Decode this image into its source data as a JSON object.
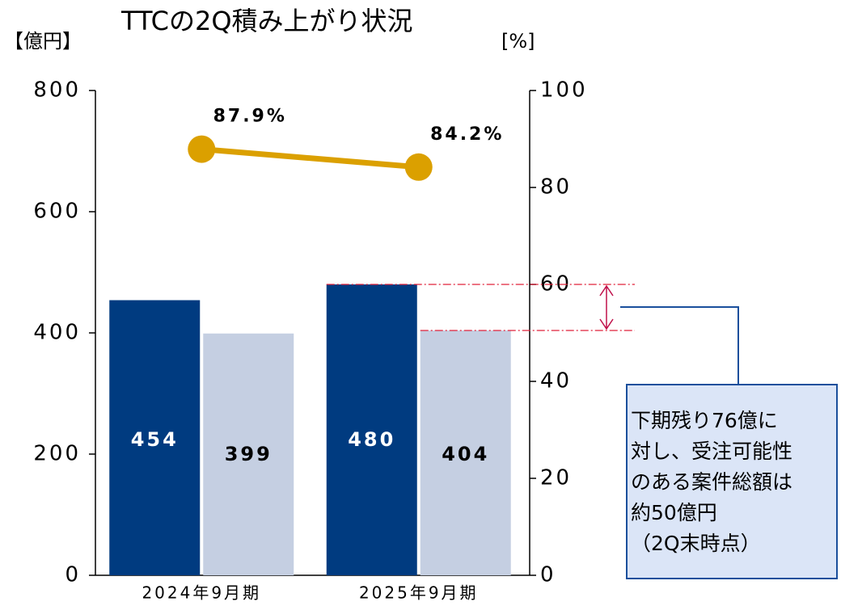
{
  "chart_data": {
    "type": "bar",
    "title": "TTCの2Q積み上がり状況",
    "y_label": "【億円】",
    "y2_label": "[%]",
    "categories": [
      "2024年9月期",
      "2025年9月期"
    ],
    "series": [
      {
        "type": "bar",
        "color": "#003b80",
        "label_color": "#ffffff",
        "values": [
          454,
          480
        ]
      },
      {
        "type": "bar",
        "color": "#c5cfe2",
        "label_color": "#000000",
        "values": [
          399,
          404
        ]
      },
      {
        "type": "line",
        "axis": "y2",
        "color": "#dba000",
        "values": [
          87.9,
          84.2
        ],
        "value_labels": [
          "87.9%",
          "84.2%"
        ]
      }
    ],
    "ylim": [
      0,
      800
    ],
    "yticks": [
      0,
      200,
      400,
      600,
      800
    ],
    "y2lim": [
      0,
      100
    ],
    "y2ticks": [
      0,
      20,
      40,
      60,
      80,
      100
    ],
    "annotation": {
      "lines": [
        "下期残り76億に",
        "対し、受注可能性",
        "のある案件総額は",
        "約50億円",
        "（2Q末時点）"
      ]
    }
  }
}
